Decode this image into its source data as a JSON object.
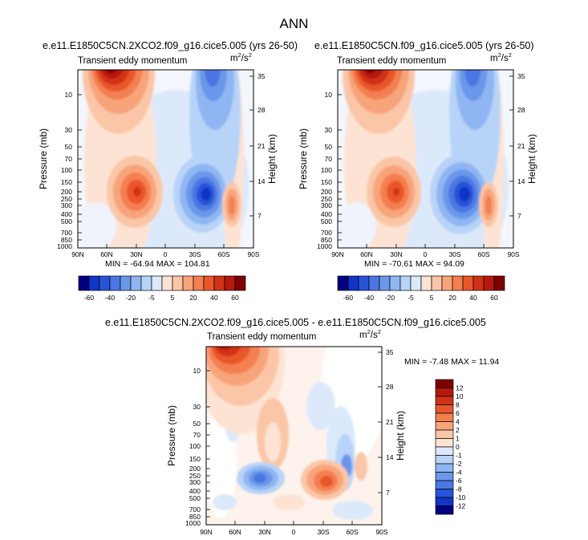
{
  "main_title": "ANN",
  "chart_data": [
    {
      "type": "heatmap",
      "title": "e.e11.E1850C5CN.2XCO2.f09_g16.cice5.005 (yrs 26-50)",
      "subtitle": "Transient eddy momentum",
      "units": "m2/s2",
      "units_base": "m",
      "units_exp": "2",
      "units_den": "/s",
      "units_den_exp": "2",
      "xlabel": "",
      "ylabel": "Pressure (mb)",
      "ylabel_right": "Height (km)",
      "x_ticks": [
        "90N",
        "60N",
        "30N",
        "0",
        "30S",
        "60S",
        "90S"
      ],
      "y_ticks": [
        "10",
        "30",
        "50",
        "70",
        "100",
        "150",
        "200",
        "250",
        "300",
        "400",
        "500",
        "700",
        "850",
        "1000"
      ],
      "y_ticks_right": [
        "35",
        "28",
        "21",
        "14",
        "7"
      ],
      "min_max_text": "MIN = -64.94   MAX = 104.81",
      "min": -64.94,
      "max": 104.81,
      "colorbar_labels": [
        "-60",
        "-40",
        "-20",
        "-5",
        "5",
        "20",
        "40",
        "60"
      ],
      "features": [
        {
          "lat": 60,
          "p": 2,
          "value": 60,
          "label": "strong positive jet near 60N"
        },
        {
          "lat": 25,
          "p": 200,
          "value": 35,
          "label": "positive max"
        },
        {
          "lat": -35,
          "p": 200,
          "value": -55,
          "label": "negative min"
        },
        {
          "lat": -70,
          "p": 300,
          "value": 25,
          "label": "positive max"
        }
      ]
    },
    {
      "type": "heatmap",
      "title": "e.e11.E1850C5CN.f09_g16.cice5.005 (yrs 26-50)",
      "subtitle": "Transient eddy momentum",
      "units": "m2/s2",
      "units_base": "m",
      "units_exp": "2",
      "units_den": "/s",
      "units_den_exp": "2",
      "xlabel": "",
      "ylabel": "Pressure (mb)",
      "ylabel_right": "Height (km)",
      "x_ticks": [
        "90N",
        "60N",
        "30N",
        "0",
        "30S",
        "60S",
        "90S"
      ],
      "y_ticks": [
        "10",
        "30",
        "50",
        "70",
        "100",
        "150",
        "200",
        "250",
        "300",
        "400",
        "500",
        "700",
        "850",
        "1000"
      ],
      "y_ticks_right": [
        "35",
        "28",
        "21",
        "14",
        "7"
      ],
      "min_max_text": "MIN = -70.61   MAX = 94.09",
      "min": -70.61,
      "max": 94.09,
      "colorbar_labels": [
        "-60",
        "-40",
        "-20",
        "-5",
        "5",
        "20",
        "40",
        "60"
      ],
      "features": [
        {
          "lat": 60,
          "p": 2,
          "value": 60,
          "label": "strong positive jet near 60N"
        },
        {
          "lat": 25,
          "p": 200,
          "value": 35,
          "label": "positive max"
        },
        {
          "lat": -35,
          "p": 200,
          "value": -60,
          "label": "negative min"
        },
        {
          "lat": -70,
          "p": 300,
          "value": 25,
          "label": "positive max"
        }
      ]
    },
    {
      "type": "heatmap",
      "title": "e.e11.E1850C5CN.2XCO2.f09_g16.cice5.005 - e.e11.E1850C5CN.f09_g16.cice5.005",
      "subtitle": "Transient eddy momentum",
      "units": "m2/s2",
      "units_base": "m",
      "units_exp": "2",
      "units_den": "/s",
      "units_den_exp": "2",
      "xlabel": "",
      "ylabel": "Pressure (mb)",
      "ylabel_right": "Height (km)",
      "x_ticks": [
        "90N",
        "60N",
        "30N",
        "0",
        "30S",
        "60S",
        "90S"
      ],
      "y_ticks": [
        "10",
        "30",
        "50",
        "70",
        "100",
        "150",
        "200",
        "250",
        "300",
        "400",
        "500",
        "700",
        "850",
        "1000"
      ],
      "y_ticks_right": [
        "35",
        "28",
        "21",
        "14",
        "7"
      ],
      "min_max_text": "MIN = -7.48  MAX = 11.94",
      "min": -7.48,
      "max": 11.94,
      "colorbar_labels": [
        "12",
        "10",
        "8",
        "6",
        "4",
        "2",
        "1",
        "0",
        "-1",
        "-2",
        "-4",
        "-6",
        "-8",
        "-10",
        "-12"
      ],
      "features": [
        {
          "lat": 65,
          "p": 3,
          "value": 11,
          "label": "positive max near 60-70N"
        },
        {
          "lat": 15,
          "p": 40,
          "value": 2,
          "label": "positive tongue"
        },
        {
          "lat": 20,
          "p": 280,
          "value": -5,
          "label": "negative min"
        },
        {
          "lat": -25,
          "p": 300,
          "value": 6,
          "label": "positive max"
        },
        {
          "lat": -45,
          "p": 200,
          "value": -4,
          "label": "negative"
        },
        {
          "lat": -60,
          "p": 170,
          "value": 3,
          "label": "positive"
        }
      ]
    }
  ],
  "colors": {
    "positive_scale": [
      "#fde3d3",
      "#fbc6a8",
      "#f8a47a",
      "#f47f51",
      "#e9562c",
      "#d03218",
      "#b5190d",
      "#800000"
    ],
    "negative_scale": [
      "#dbe9fb",
      "#b8d3f8",
      "#8fb6f2",
      "#6b97ea",
      "#4b77e3",
      "#2853d8",
      "#1135c5",
      "#000080"
    ]
  }
}
